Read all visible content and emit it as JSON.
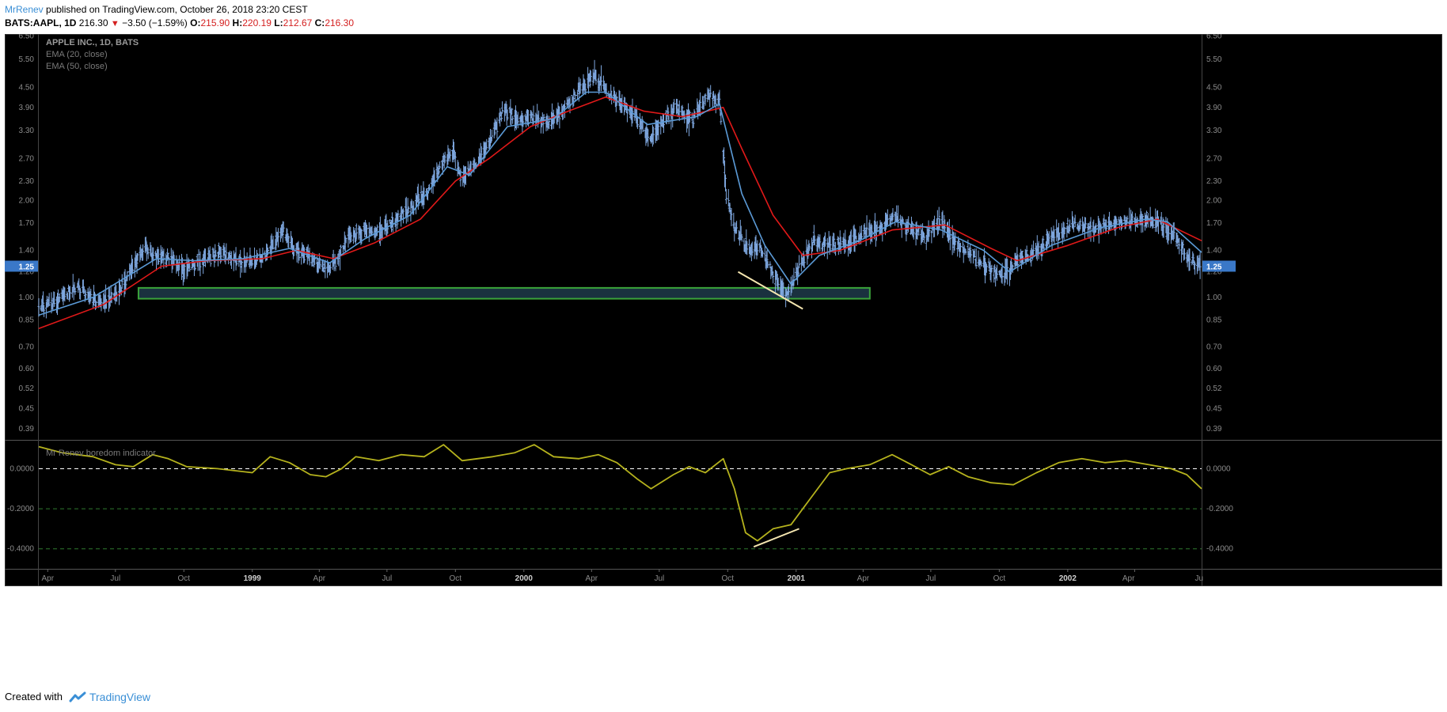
{
  "header": {
    "author": "MrRenev",
    "published_text": " published on TradingView.com, October 26, 2018 23:20 CEST"
  },
  "quote": {
    "symbol": "BATS:AAPL, 1D",
    "last": "216.30",
    "change": "−3.50 (−1.59%)",
    "o_label": "O:",
    "o": "215.90",
    "h_label": "H:",
    "h": "220.19",
    "l_label": "L:",
    "l": "212.67",
    "c_label": "C:",
    "c": "216.30",
    "down_color": "#d41f1f"
  },
  "footer": {
    "created_with": "Created with",
    "brand": "TradingView"
  },
  "chart_data": [
    {
      "type": "bar",
      "legend": [
        "APPLE INC., 1D, BATS",
        "EMA (20, close)",
        "EMA (50, close)"
      ],
      "scale": "log",
      "ylim": [
        0.36,
        6.6
      ],
      "y_ticks": [
        "6.50",
        "5.50",
        "4.50",
        "3.90",
        "3.30",
        "2.70",
        "2.30",
        "2.00",
        "1.70",
        "1.40",
        "1.20",
        "1.00",
        "0.85",
        "0.70",
        "0.60",
        "0.52",
        "0.45",
        "0.39"
      ],
      "last_price_label": "1.25",
      "last_price": 1.25,
      "x_ticks": [
        "Apr",
        "Jul",
        "Oct",
        "1999",
        "Apr",
        "Jul",
        "Oct",
        "2000",
        "Apr",
        "Jul",
        "Oct",
        "2001",
        "Apr",
        "Jul",
        "Oct",
        "2002",
        "Apr",
        "Ju"
      ],
      "x_range": [
        "1998-03-20",
        "2002-06-30"
      ],
      "price_path": [
        [
          "1998-03-20",
          0.92
        ],
        [
          "1998-04-15",
          0.98
        ],
        [
          "1998-05-10",
          1.08
        ],
        [
          "1998-06-05",
          0.96
        ],
        [
          "1998-07-01",
          1.0
        ],
        [
          "1998-07-20",
          1.18
        ],
        [
          "1998-08-10",
          1.45
        ],
        [
          "1998-08-25",
          1.32
        ],
        [
          "1998-09-10",
          1.35
        ],
        [
          "1998-10-01",
          1.22
        ],
        [
          "1998-10-20",
          1.3
        ],
        [
          "1998-11-20",
          1.38
        ],
        [
          "1998-12-20",
          1.28
        ],
        [
          "1999-01-20",
          1.35
        ],
        [
          "1999-02-10",
          1.62
        ],
        [
          "1999-02-25",
          1.42
        ],
        [
          "1999-03-20",
          1.35
        ],
        [
          "1999-04-10",
          1.22
        ],
        [
          "1999-04-25",
          1.3
        ],
        [
          "1999-05-10",
          1.55
        ],
        [
          "1999-06-01",
          1.62
        ],
        [
          "1999-06-25",
          1.58
        ],
        [
          "1999-07-15",
          1.78
        ],
        [
          "1999-08-05",
          1.92
        ],
        [
          "1999-08-25",
          2.15
        ],
        [
          "1999-09-15",
          2.65
        ],
        [
          "1999-09-28",
          2.85
        ],
        [
          "1999-10-10",
          2.35
        ],
        [
          "1999-10-25",
          2.55
        ],
        [
          "1999-11-15",
          3.05
        ],
        [
          "1999-12-05",
          3.85
        ],
        [
          "1999-12-25",
          3.6
        ],
        [
          "2000-01-15",
          3.65
        ],
        [
          "2000-02-05",
          3.5
        ],
        [
          "2000-02-25",
          3.85
        ],
        [
          "2000-03-20",
          4.55
        ],
        [
          "2000-04-05",
          4.9
        ],
        [
          "2000-04-25",
          4.3
        ],
        [
          "2000-05-15",
          3.95
        ],
        [
          "2000-06-05",
          3.5
        ],
        [
          "2000-06-20",
          3.1
        ],
        [
          "2000-07-10",
          3.6
        ],
        [
          "2000-07-25",
          3.9
        ],
        [
          "2000-08-15",
          3.55
        ],
        [
          "2000-09-05",
          4.3
        ],
        [
          "2000-09-20",
          4.1
        ],
        [
          "2000-09-29",
          2.1
        ],
        [
          "2000-10-10",
          1.65
        ],
        [
          "2000-10-25",
          1.45
        ],
        [
          "2000-11-15",
          1.4
        ],
        [
          "2000-12-05",
          1.15
        ],
        [
          "2000-12-20",
          1.0
        ],
        [
          "2001-01-05",
          1.25
        ],
        [
          "2001-01-25",
          1.5
        ],
        [
          "2001-02-15",
          1.45
        ],
        [
          "2001-03-10",
          1.48
        ],
        [
          "2001-04-05",
          1.6
        ],
        [
          "2001-04-25",
          1.65
        ],
        [
          "2001-05-15",
          1.8
        ],
        [
          "2001-06-05",
          1.62
        ],
        [
          "2001-06-25",
          1.55
        ],
        [
          "2001-07-15",
          1.72
        ],
        [
          "2001-08-05",
          1.45
        ],
        [
          "2001-08-25",
          1.35
        ],
        [
          "2001-09-20",
          1.22
        ],
        [
          "2001-10-05",
          1.15
        ],
        [
          "2001-10-25",
          1.3
        ],
        [
          "2001-11-20",
          1.4
        ],
        [
          "2001-12-15",
          1.55
        ],
        [
          "2002-01-10",
          1.7
        ],
        [
          "2002-02-05",
          1.65
        ],
        [
          "2002-03-05",
          1.72
        ],
        [
          "2002-04-05",
          1.75
        ],
        [
          "2002-05-01",
          1.72
        ],
        [
          "2002-05-25",
          1.55
        ],
        [
          "2002-06-15",
          1.3
        ],
        [
          "2002-06-30",
          1.25
        ]
      ],
      "ema20": [
        [
          "1998-03-20",
          0.88
        ],
        [
          "1998-06-01",
          1.0
        ],
        [
          "1998-08-25",
          1.32
        ],
        [
          "1998-10-15",
          1.3
        ],
        [
          "1998-12-20",
          1.32
        ],
        [
          "1999-02-20",
          1.42
        ],
        [
          "1999-04-15",
          1.28
        ],
        [
          "1999-06-01",
          1.52
        ],
        [
          "1999-08-01",
          1.8
        ],
        [
          "1999-09-20",
          2.55
        ],
        [
          "1999-10-20",
          2.4
        ],
        [
          "1999-12-10",
          3.4
        ],
        [
          "2000-02-10",
          3.6
        ],
        [
          "2000-03-25",
          4.35
        ],
        [
          "2000-04-20",
          4.35
        ],
        [
          "2000-06-15",
          3.45
        ],
        [
          "2000-08-20",
          3.65
        ],
        [
          "2000-09-20",
          4.0
        ],
        [
          "2000-10-20",
          2.1
        ],
        [
          "2000-11-20",
          1.45
        ],
        [
          "2000-12-25",
          1.1
        ],
        [
          "2001-02-01",
          1.35
        ],
        [
          "2001-04-01",
          1.52
        ],
        [
          "2001-05-15",
          1.72
        ],
        [
          "2001-07-15",
          1.62
        ],
        [
          "2001-09-10",
          1.4
        ],
        [
          "2001-10-15",
          1.2
        ],
        [
          "2001-12-10",
          1.45
        ],
        [
          "2002-02-15",
          1.65
        ],
        [
          "2002-04-15",
          1.75
        ],
        [
          "2002-05-15",
          1.72
        ],
        [
          "2002-06-30",
          1.38
        ]
      ],
      "ema50": [
        [
          "1998-03-20",
          0.8
        ],
        [
          "1998-06-15",
          0.95
        ],
        [
          "1998-09-01",
          1.25
        ],
        [
          "1998-11-01",
          1.3
        ],
        [
          "1999-01-15",
          1.32
        ],
        [
          "1999-03-01",
          1.4
        ],
        [
          "1999-04-20",
          1.32
        ],
        [
          "1999-06-15",
          1.48
        ],
        [
          "1999-08-15",
          1.75
        ],
        [
          "1999-10-01",
          2.3
        ],
        [
          "1999-11-15",
          2.7
        ],
        [
          "2000-01-10",
          3.4
        ],
        [
          "2000-03-01",
          3.8
        ],
        [
          "2000-04-20",
          4.2
        ],
        [
          "2000-06-10",
          3.8
        ],
        [
          "2000-08-01",
          3.65
        ],
        [
          "2000-09-25",
          3.9
        ],
        [
          "2000-10-20",
          2.9
        ],
        [
          "2000-12-01",
          1.8
        ],
        [
          "2001-01-10",
          1.35
        ],
        [
          "2001-03-01",
          1.4
        ],
        [
          "2001-05-10",
          1.62
        ],
        [
          "2001-07-20",
          1.68
        ],
        [
          "2001-09-20",
          1.42
        ],
        [
          "2001-10-25",
          1.3
        ],
        [
          "2002-01-01",
          1.45
        ],
        [
          "2002-03-10",
          1.65
        ],
        [
          "2002-05-01",
          1.75
        ],
        [
          "2002-06-30",
          1.5
        ]
      ],
      "zone": {
        "from": "1998-08-01",
        "to": "2001-04-10",
        "low": 0.99,
        "high": 1.07
      },
      "trendline": [
        [
          "2000-10-15",
          1.2
        ],
        [
          "2001-01-10",
          0.92
        ]
      ]
    },
    {
      "type": "line",
      "legend": [
        "Mr Renev boredom indicator"
      ],
      "ylim": [
        -0.5,
        0.14
      ],
      "y_ticks": [
        "0.0000",
        "-0.2000",
        "-0.4000"
      ],
      "levels": [
        0.0,
        -0.2,
        -0.4
      ],
      "series": [
        [
          "1998-03-20",
          0.11
        ],
        [
          "1998-04-20",
          0.08
        ],
        [
          "1998-06-01",
          0.06
        ],
        [
          "1998-07-01",
          0.02
        ],
        [
          "1998-07-25",
          0.01
        ],
        [
          "1998-08-20",
          0.07
        ],
        [
          "1998-09-10",
          0.05
        ],
        [
          "1998-10-05",
          0.01
        ],
        [
          "1998-11-15",
          0.0
        ],
        [
          "1999-01-01",
          -0.02
        ],
        [
          "1999-01-25",
          0.06
        ],
        [
          "1999-02-20",
          0.03
        ],
        [
          "1999-03-20",
          -0.03
        ],
        [
          "1999-04-10",
          -0.04
        ],
        [
          "1999-05-01",
          0.0
        ],
        [
          "1999-05-20",
          0.06
        ],
        [
          "1999-06-20",
          0.04
        ],
        [
          "1999-07-20",
          0.07
        ],
        [
          "1999-08-20",
          0.06
        ],
        [
          "1999-09-15",
          0.12
        ],
        [
          "1999-10-10",
          0.04
        ],
        [
          "1999-11-20",
          0.06
        ],
        [
          "1999-12-20",
          0.08
        ],
        [
          "2000-01-15",
          0.12
        ],
        [
          "2000-02-10",
          0.06
        ],
        [
          "2000-03-15",
          0.05
        ],
        [
          "2000-04-10",
          0.07
        ],
        [
          "2000-05-05",
          0.03
        ],
        [
          "2000-06-01",
          -0.05
        ],
        [
          "2000-06-20",
          -0.1
        ],
        [
          "2000-07-20",
          -0.03
        ],
        [
          "2000-08-10",
          0.01
        ],
        [
          "2000-09-01",
          -0.02
        ],
        [
          "2000-09-25",
          0.05
        ],
        [
          "2000-10-10",
          -0.1
        ],
        [
          "2000-10-25",
          -0.32
        ],
        [
          "2000-11-10",
          -0.36
        ],
        [
          "2000-12-01",
          -0.3
        ],
        [
          "2000-12-25",
          -0.28
        ],
        [
          "2001-01-20",
          -0.15
        ],
        [
          "2001-02-15",
          -0.02
        ],
        [
          "2001-03-10",
          0.0
        ],
        [
          "2001-04-10",
          0.02
        ],
        [
          "2001-05-10",
          0.07
        ],
        [
          "2001-06-05",
          0.02
        ],
        [
          "2001-06-30",
          -0.03
        ],
        [
          "2001-07-25",
          0.01
        ],
        [
          "2001-08-20",
          -0.04
        ],
        [
          "2001-09-20",
          -0.07
        ],
        [
          "2001-10-20",
          -0.08
        ],
        [
          "2001-11-20",
          -0.02
        ],
        [
          "2001-12-20",
          0.03
        ],
        [
          "2002-01-20",
          0.05
        ],
        [
          "2002-02-20",
          0.03
        ],
        [
          "2002-03-20",
          0.04
        ],
        [
          "2002-04-20",
          0.02
        ],
        [
          "2002-05-20",
          0.0
        ],
        [
          "2002-06-10",
          -0.03
        ],
        [
          "2002-06-30",
          -0.1
        ]
      ],
      "trendline": [
        [
          "2000-11-05",
          -0.39
        ],
        [
          "2001-01-05",
          -0.3
        ]
      ]
    }
  ],
  "colors": {
    "bars": "#7fa8e0",
    "ema20": "#5b9ad6",
    "ema50": "#e01919",
    "indicator": "#b5b21d",
    "zone_border": "#3aa33a",
    "zone_fill": "#1f3a4a",
    "trendline": "#f5e6b0",
    "price_tag": "#3a78c8"
  }
}
